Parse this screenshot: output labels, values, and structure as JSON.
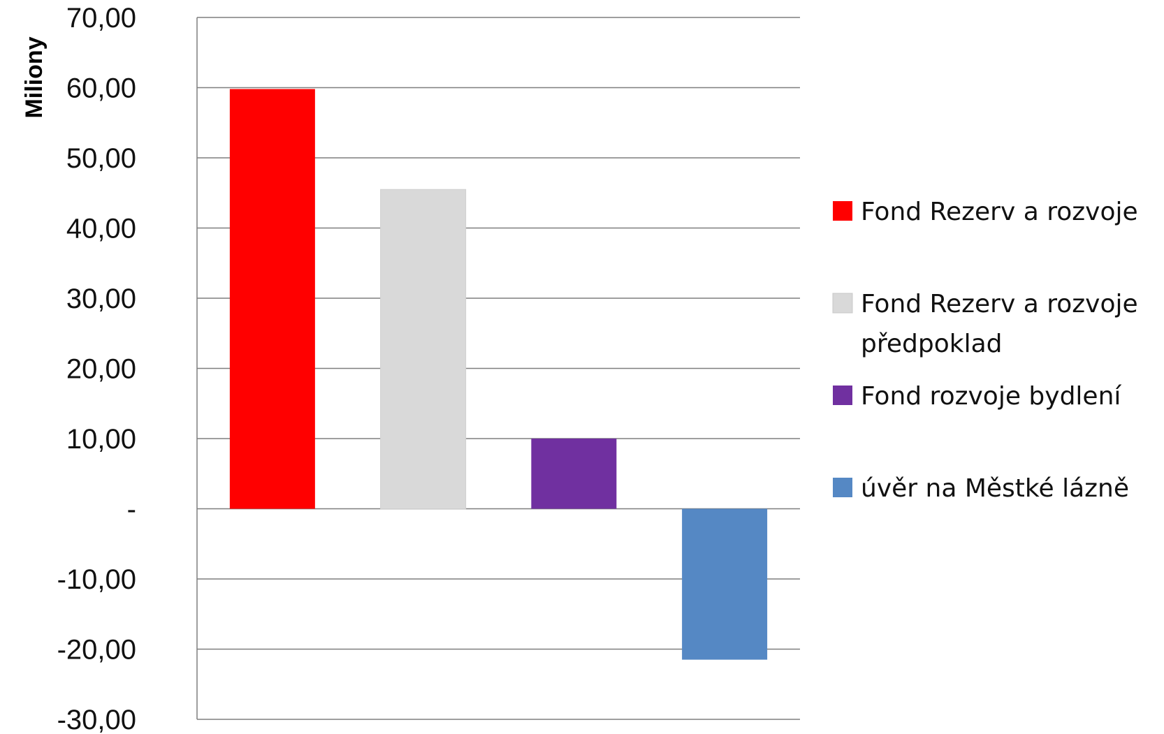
{
  "chart_data": {
    "type": "bar",
    "title": "",
    "xlabel": "",
    "ylabel": "Miliony",
    "ylim": [
      -30,
      70
    ],
    "y_ticks": [
      70,
      60,
      50,
      40,
      30,
      20,
      10,
      0,
      -10,
      -20,
      -30
    ],
    "y_tick_labels": [
      "70,00",
      "60,00",
      "50,00",
      "40,00",
      "30,00",
      "20,00",
      "10,00",
      "-",
      "-10,00",
      "-20,00",
      "-30,00"
    ],
    "grid": true,
    "legend_position": "right",
    "series": [
      {
        "name": "Fond Rezerv a rozvoje",
        "value": 59.8,
        "color": "#ff0000"
      },
      {
        "name": "Fond Rezerv a rozvoje předpoklad",
        "value": 45.5,
        "color": "#d9d9d9"
      },
      {
        "name": "Fond rozvoje bydlení",
        "value": 10.0,
        "color": "#7030a0"
      },
      {
        "name": "úvěr na Městké lázně",
        "value": -21.5,
        "color": "#5588c4"
      }
    ]
  }
}
